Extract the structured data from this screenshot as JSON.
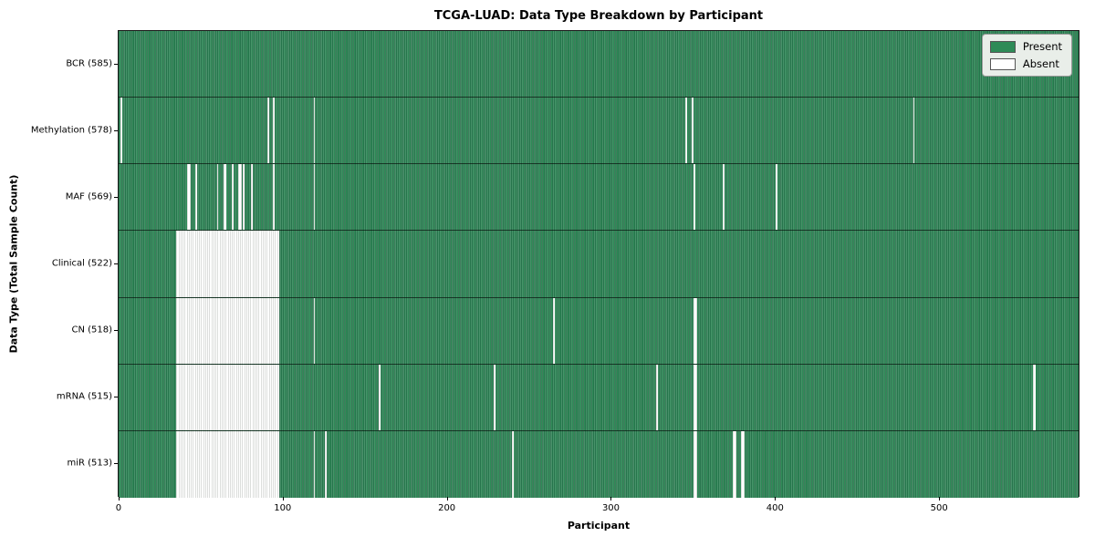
{
  "chart_data": {
    "type": "heatmap",
    "title": "TCGA-LUAD: Data Type Breakdown by Participant",
    "xlabel": "Participant",
    "ylabel": "Data Type (Total Sample Count)",
    "x_ticks": [
      0,
      100,
      200,
      300,
      400,
      500
    ],
    "x_domain": 586,
    "n_participants": 585,
    "legend": [
      {
        "label": "Present",
        "color": "#2e8b57"
      },
      {
        "label": "Absent",
        "color": "#ffffff"
      }
    ],
    "colors": {
      "present": "#2e8b57",
      "absent": "#ffffff",
      "bar_edge": "#1f5f40"
    },
    "rows": [
      {
        "label": "BCR (585)",
        "name": "BCR",
        "present_count": 585,
        "absent_ranges": []
      },
      {
        "label": "Methylation (578)",
        "name": "Methylation",
        "present_count": 578,
        "absent_ranges": [
          [
            1,
            1
          ],
          [
            91,
            1
          ],
          [
            94,
            1
          ],
          [
            119,
            1
          ],
          [
            346,
            1
          ],
          [
            350,
            1
          ],
          [
            485,
            1
          ]
        ]
      },
      {
        "label": "MAF (569)",
        "name": "MAF",
        "present_count": 569,
        "absent_ranges": [
          [
            42,
            2
          ],
          [
            47,
            1
          ],
          [
            60,
            1
          ],
          [
            64,
            2
          ],
          [
            69,
            1
          ],
          [
            73,
            2
          ],
          [
            76,
            1
          ],
          [
            81,
            1
          ],
          [
            94,
            1
          ],
          [
            119,
            1
          ],
          [
            351,
            1
          ],
          [
            369,
            1
          ],
          [
            401,
            1
          ]
        ]
      },
      {
        "label": "Clinical (522)",
        "name": "Clinical",
        "present_count": 522,
        "absent_ranges": [
          [
            35,
            63
          ]
        ]
      },
      {
        "label": "CN (518)",
        "name": "CN",
        "present_count": 518,
        "absent_ranges": [
          [
            35,
            63
          ],
          [
            119,
            1
          ],
          [
            265,
            1
          ],
          [
            351,
            2
          ]
        ]
      },
      {
        "label": "mRNA (515)",
        "name": "mRNA",
        "present_count": 515,
        "absent_ranges": [
          [
            35,
            63
          ],
          [
            159,
            1
          ],
          [
            229,
            1
          ],
          [
            328,
            1
          ],
          [
            351,
            2
          ],
          [
            558,
            2
          ]
        ]
      },
      {
        "label": "miR (513)",
        "name": "miR",
        "present_count": 513,
        "absent_ranges": [
          [
            35,
            63
          ],
          [
            119,
            1
          ],
          [
            126,
            1
          ],
          [
            240,
            1
          ],
          [
            351,
            2
          ],
          [
            375,
            2
          ],
          [
            380,
            2
          ]
        ]
      }
    ]
  }
}
